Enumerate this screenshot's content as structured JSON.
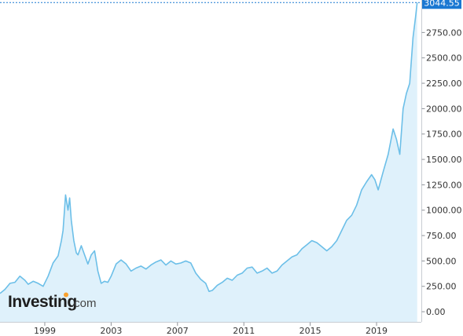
{
  "brand": {
    "logo_main": "Investing",
    "logo_suffix": ".com",
    "logo_color": "#1e1e1e",
    "dot_color": "#f9a12e"
  },
  "colors": {
    "line": "#6cbfe8",
    "fill": "#dff1fb",
    "last_badge": "#1a78d2",
    "last_line": "#1a78d2",
    "grid_tick": "#8f9399",
    "axis": "#c8cdd3"
  },
  "chart_data": {
    "type": "area",
    "title": "",
    "xlabel": "",
    "ylabel": "",
    "ylim": [
      -100,
      3070
    ],
    "xlim": [
      1996.3,
      2021.7
    ],
    "last_value": 3044.55,
    "last_value_label": "3044.55",
    "x_ticks": [
      {
        "value": 1999,
        "label": "1999"
      },
      {
        "value": 2003,
        "label": "2003"
      },
      {
        "value": 2007,
        "label": "2007"
      },
      {
        "value": 2011,
        "label": "2011"
      },
      {
        "value": 2015,
        "label": "2015"
      },
      {
        "value": 2019,
        "label": "2019"
      }
    ],
    "y_ticks": [
      {
        "value": 0,
        "label": "0.00"
      },
      {
        "value": 250,
        "label": "250.00"
      },
      {
        "value": 500,
        "label": "500.00"
      },
      {
        "value": 750,
        "label": "750.00"
      },
      {
        "value": 1000,
        "label": "1000.00"
      },
      {
        "value": 1250,
        "label": "1250.00"
      },
      {
        "value": 1500,
        "label": "1500.00"
      },
      {
        "value": 1750,
        "label": "1750.00"
      },
      {
        "value": 2000,
        "label": "2000.00"
      },
      {
        "value": 2250,
        "label": "2250.00"
      },
      {
        "value": 2500,
        "label": "2500.00"
      },
      {
        "value": 2750,
        "label": "2750.00"
      }
    ],
    "series": [
      {
        "x": [
          1996.3,
          1996.6,
          1996.9,
          1997.2,
          1997.5,
          1997.8,
          1998.0,
          1998.3,
          1998.6,
          1998.9,
          1999.2,
          1999.5,
          1999.8,
          2000.0,
          2000.1,
          2000.25,
          2000.4,
          2000.5,
          2000.6,
          2000.75,
          2000.9,
          2001.0,
          2001.2,
          2001.4,
          2001.6,
          2001.8,
          2002.0,
          2002.2,
          2002.4,
          2002.6,
          2002.8,
          2003.0,
          2003.3,
          2003.6,
          2003.9,
          2004.2,
          2004.5,
          2004.8,
          2005.1,
          2005.4,
          2005.7,
          2006.0,
          2006.3,
          2006.6,
          2006.9,
          2007.2,
          2007.5,
          2007.8,
          2008.1,
          2008.4,
          2008.7,
          2008.9,
          2009.1,
          2009.4,
          2009.7,
          2010.0,
          2010.3,
          2010.6,
          2010.9,
          2011.2,
          2011.5,
          2011.8,
          2012.1,
          2012.4,
          2012.7,
          2013.0,
          2013.3,
          2013.6,
          2013.9,
          2014.2,
          2014.5,
          2014.8,
          2015.1,
          2015.4,
          2015.7,
          2016.0,
          2016.3,
          2016.6,
          2016.9,
          2017.2,
          2017.5,
          2017.8,
          2018.1,
          2018.4,
          2018.7,
          2018.9,
          2019.1,
          2019.4,
          2019.7,
          2020.0,
          2020.2,
          2020.4,
          2020.6,
          2020.8,
          2021.0,
          2021.2,
          2021.35,
          2021.45
        ],
        "y": [
          180,
          220,
          280,
          290,
          350,
          310,
          270,
          300,
          280,
          250,
          350,
          480,
          550,
          700,
          800,
          1150,
          1000,
          1120,
          900,
          700,
          580,
          560,
          650,
          560,
          470,
          560,
          600,
          400,
          280,
          300,
          290,
          350,
          470,
          510,
          470,
          400,
          430,
          450,
          420,
          460,
          490,
          510,
          460,
          500,
          470,
          480,
          500,
          480,
          380,
          320,
          280,
          200,
          210,
          260,
          290,
          330,
          310,
          360,
          380,
          430,
          440,
          380,
          400,
          430,
          380,
          400,
          460,
          500,
          540,
          560,
          620,
          660,
          700,
          680,
          640,
          600,
          640,
          700,
          800,
          900,
          950,
          1050,
          1200,
          1280,
          1350,
          1300,
          1200,
          1380,
          1550,
          1800,
          1700,
          1550,
          2000,
          2150,
          2250,
          2700,
          2900,
          3044.55
        ]
      }
    ]
  }
}
